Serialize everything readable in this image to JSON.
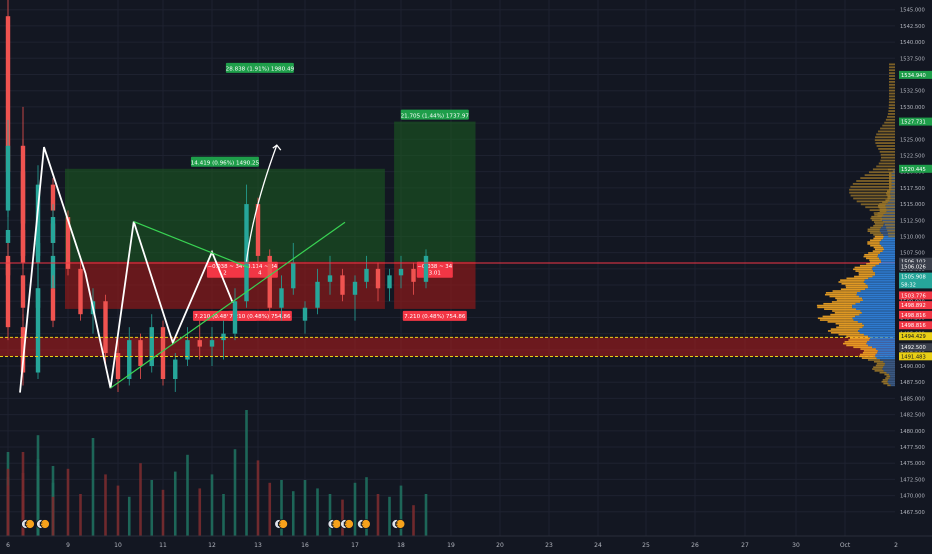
{
  "chart_data": {
    "type": "candlestick",
    "title": "",
    "xlabel": "",
    "ylabel": "",
    "ylim": [
      1465.0,
      1546.5
    ],
    "grid": true,
    "x_ticks": [
      {
        "label": "6",
        "day": 6
      },
      {
        "label": "9",
        "day": 9
      },
      {
        "label": "10",
        "day": 10
      },
      {
        "label": "11",
        "day": 11
      },
      {
        "label": "12",
        "day": 12
      },
      {
        "label": "13",
        "day": 13
      },
      {
        "label": "16",
        "day": 16
      },
      {
        "label": "17",
        "day": 17
      },
      {
        "label": "18",
        "day": 18
      },
      {
        "label": "19",
        "day": 19
      },
      {
        "label": "20",
        "day": 20
      },
      {
        "label": "23",
        "day": 23
      },
      {
        "label": "24",
        "day": 24
      },
      {
        "label": "25",
        "day": 25
      },
      {
        "label": "26",
        "day": 26
      },
      {
        "label": "27",
        "day": 27
      },
      {
        "label": "30",
        "day": 30
      },
      {
        "label": "Oct",
        "day": 31
      },
      {
        "label": "2",
        "day": 32
      }
    ],
    "y_ticks": [
      "1545.000",
      "1542.500",
      "1540.000",
      "1537.500",
      "1535.000",
      "1532.500",
      "1530.000",
      "1527.500",
      "1525.000",
      "1522.500",
      "1520.000",
      "1517.500",
      "1515.000",
      "1512.500",
      "1510.000",
      "1507.500",
      "1505.000",
      "1502.500",
      "1500.000",
      "1497.500",
      "1495.000",
      "1492.500",
      "1490.000",
      "1487.500",
      "1485.000",
      "1482.500",
      "1480.000",
      "1477.500",
      "1475.000",
      "1472.500",
      "1470.000",
      "1467.500"
    ],
    "price_labels": [
      {
        "text": "1534.940",
        "price": 1534.94,
        "color": "#1e9e4a"
      },
      {
        "text": "1527.731",
        "price": 1527.731,
        "color": "#1e9e4a"
      },
      {
        "text": "1520.445",
        "price": 1520.445,
        "color": "#1e9e4a"
      },
      {
        "text": "1506.102",
        "price": 1506.102,
        "color": "#3a3f4b"
      },
      {
        "text": "1506.026",
        "price": 1505.4,
        "color": "#3a3f4b"
      },
      {
        "text": "1505.908",
        "price": 1503.8,
        "color": "#26a69a"
      },
      {
        "text": "58:32",
        "price": 1502.6,
        "color": "#26a69a"
      },
      {
        "text": "1503.776",
        "price": 1500.9,
        "color": "#f23645"
      },
      {
        "text": "1498.892",
        "price": 1499.4,
        "color": "#f23645"
      },
      {
        "text": "1498.816",
        "price": 1497.9,
        "color": "#f23645"
      },
      {
        "text": "1498.816",
        "price": 1496.3,
        "color": "#f23645"
      },
      {
        "text": "1494.429",
        "price": 1494.6,
        "color": "#e9cf15"
      },
      {
        "text": "1492.500",
        "price": 1492.9,
        "color": "#3a3f4b"
      },
      {
        "text": "1491.483",
        "price": 1491.5,
        "color": "#e9cf15"
      }
    ],
    "horizontal_lines": [
      {
        "price": 1505.9,
        "color": "#f23645"
      },
      {
        "price": 1494.43,
        "color": "#e9cf15"
      },
      {
        "price": 1491.48,
        "color": "#e9cf15"
      }
    ],
    "zone": {
      "from": 1494.43,
      "to": 1491.48,
      "color": "#b71c1c"
    },
    "candles": [
      [
        6.0,
        1544,
        1548,
        1518,
        1520
      ],
      [
        6.25,
        1520,
        1530,
        1509,
        1512
      ],
      [
        6.5,
        1512,
        1521,
        1508,
        1518
      ],
      [
        6.75,
        1518,
        1519,
        1511,
        1514
      ],
      [
        7.0,
        1514,
        1528,
        1513,
        1524
      ],
      [
        7.25,
        1524,
        1525,
        1505,
        1507
      ],
      [
        7.5,
        1507,
        1515,
        1502,
        1512
      ],
      [
        7.75,
        1512,
        1513,
        1507,
        1509
      ],
      [
        8.0,
        1509,
        1514,
        1506,
        1511
      ],
      [
        8.25,
        1511,
        1512,
        1505,
        1506
      ],
      [
        8.5,
        1506,
        1510,
        1503,
        1509
      ],
      [
        8.75,
        1509,
        1515,
        1508,
        1513
      ],
      [
        9.0,
        1513,
        1514,
        1504,
        1505
      ],
      [
        9.25,
        1505,
        1507,
        1497,
        1498
      ],
      [
        9.5,
        1498,
        1502,
        1495,
        1500
      ],
      [
        9.75,
        1500,
        1501,
        1490,
        1492
      ],
      [
        10.0,
        1492,
        1494,
        1486,
        1488
      ],
      [
        10.25,
        1488,
        1496,
        1487,
        1494
      ],
      [
        10.5,
        1494,
        1495,
        1488,
        1490
      ],
      [
        10.75,
        1490,
        1498,
        1489,
        1496
      ],
      [
        11.0,
        1496,
        1497,
        1487,
        1488
      ],
      [
        11.25,
        1488,
        1492,
        1486,
        1491
      ],
      [
        11.5,
        1491,
        1496,
        1490,
        1494
      ],
      [
        11.75,
        1494,
        1497,
        1491,
        1493
      ],
      [
        12.0,
        1493,
        1496,
        1490,
        1494
      ],
      [
        12.25,
        1494,
        1497,
        1491,
        1495
      ],
      [
        12.5,
        1495,
        1502,
        1494,
        1500
      ],
      [
        12.75,
        1500,
        1518,
        1499,
        1515
      ],
      [
        13.0,
        1515,
        1516,
        1505,
        1507
      ],
      [
        13.25,
        1507,
        1508,
        1497,
        1499
      ],
      [
        13.5,
        1499,
        1504,
        1497,
        1502
      ],
      [
        13.75,
        1502,
        1509,
        1501,
        1506
      ],
      [
        14.0,
        1506,
        1507,
        1494,
        1496
      ],
      [
        14.25,
        1496,
        1498,
        1487,
        1489
      ],
      [
        14.5,
        1489,
        1504,
        1488,
        1502
      ],
      [
        14.75,
        1502,
        1510,
        1501,
        1507
      ],
      [
        15.0,
        1507,
        1509,
        1502,
        1504
      ],
      [
        15.25,
        1504,
        1505,
        1497,
        1499
      ],
      [
        15.5,
        1499,
        1503,
        1496,
        1502
      ],
      [
        15.75,
        1502,
        1504,
        1496,
        1497
      ],
      [
        16.0,
        1497,
        1500,
        1495,
        1499
      ],
      [
        16.25,
        1499,
        1505,
        1498,
        1503
      ],
      [
        16.5,
        1503,
        1507,
        1501,
        1504
      ],
      [
        16.75,
        1504,
        1505,
        1500,
        1501
      ],
      [
        17.0,
        1501,
        1504,
        1497,
        1503
      ],
      [
        17.25,
        1503,
        1507,
        1502,
        1505
      ],
      [
        17.5,
        1505,
        1506,
        1500,
        1502
      ],
      [
        17.75,
        1502,
        1505,
        1500,
        1504
      ],
      [
        18.0,
        1504,
        1507,
        1502,
        1505
      ],
      [
        18.25,
        1505,
        1506,
        1501,
        1503
      ],
      [
        18.5,
        1503,
        1508,
        1502,
        1507
      ]
    ],
    "volume_scale_max": 100,
    "volumes": [
      40,
      32,
      55,
      28,
      60,
      45,
      35,
      30,
      42,
      25,
      50,
      38,
      48,
      30,
      70,
      44,
      36,
      28,
      52,
      40,
      33,
      46,
      58,
      34,
      44,
      30,
      62,
      90,
      54,
      38,
      40,
      32,
      48,
      60,
      72,
      50,
      36,
      30,
      44,
      28,
      40,
      34,
      30,
      26,
      38,
      42,
      30,
      28,
      36,
      22,
      30
    ],
    "annotations": [
      {
        "type": "zigzag",
        "color": "#ffffff",
        "points": [
          [
            6.2,
            1485.9
          ],
          [
            8.6,
            1523.8
          ],
          [
            9.35,
            1504.3
          ],
          [
            9.85,
            1486.6
          ],
          [
            10.35,
            1512.3
          ],
          [
            11.2,
            1493.6
          ],
          [
            12.0,
            1507.6
          ],
          [
            12.45,
            1499.8
          ]
        ]
      },
      {
        "type": "line",
        "color": "#39d353",
        "points": [
          [
            9.85,
            1486.6
          ],
          [
            16.8,
            1512.2
          ]
        ]
      },
      {
        "type": "line",
        "color": "#39d353",
        "points": [
          [
            10.35,
            1512.3
          ],
          [
            12.8,
            1505.2
          ]
        ]
      },
      {
        "type": "arrow",
        "color": "#ffffff",
        "points": [
          [
            12.75,
            1506.1
          ],
          [
            13.4,
            1524.1
          ]
        ]
      }
    ],
    "positions": [
      {
        "x_start": 15.95,
        "x_end": 17.65,
        "entry": 1506.1,
        "target": 1520.445,
        "stop": 1498.816,
        "target_label": "14.419 (0.96%) 1490.25",
        "mid_label_1": "−0.038 ~ 34",
        "mid_label_2": "2",
        "stop_label": "7.210 (0.48%) 754.86"
      },
      {
        "x_start": 17.85,
        "x_end": 19.5,
        "entry": 1506.1,
        "target": 1527.731,
        "stop": 1498.816,
        "target_label": "21.705 (1.44%) 1737.97",
        "mid_label_1": "−0.038 ~ 34",
        "mid_label_2": "3.01",
        "stop_label": "7.210 (0.48%) 754.86"
      },
      {
        "x_start": 19.75,
        "x_end": 21.4,
        "entry": 1506.1,
        "target": 1534.94,
        "stop": 1498.816,
        "target_label": "28.838 (1.91%) 1980.49",
        "mid_label_1": "−0.114 ~ 34",
        "mid_label_2": "4",
        "stop_label": "7.210 (0.48%) 754.86"
      }
    ],
    "event_markers": [
      {
        "day": 13.45,
        "label": "E"
      },
      {
        "day": 14.3,
        "label": "E"
      },
      {
        "day": 15.55,
        "label": "E"
      },
      {
        "day": 16.55,
        "label": "E"
      },
      {
        "day": 16.8,
        "label": "E"
      },
      {
        "day": 17.15,
        "label": "E"
      },
      {
        "day": 17.9,
        "label": "E"
      }
    ]
  }
}
